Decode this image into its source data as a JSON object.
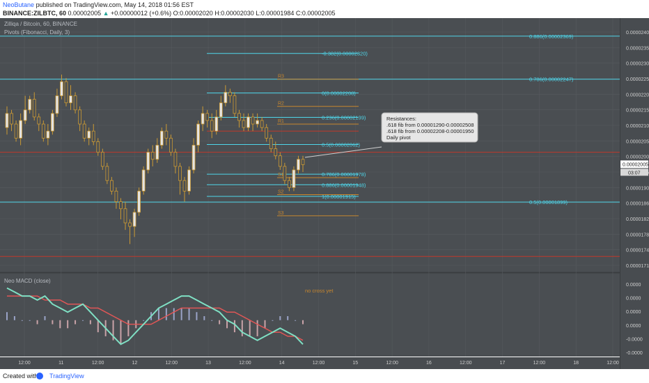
{
  "header": {
    "user": "NeoButane",
    "published": "published on TradingView.com, May 14, 2018 01:56 EST",
    "symbol": "BINANCE:ZILBTC, 60",
    "last": "0.00002005",
    "arrow": "▲",
    "change": "+0.00000012 (+0.6%)",
    "open_label": "O:",
    "open": "0.00002020",
    "high_label": "H:",
    "high": "0.00002030",
    "low_label": "L:",
    "low": "0.00001984",
    "close_label": "C:",
    "close": "0.00002005"
  },
  "legend": {
    "title": "Zilliqa / Bitcoin, 60, BINANCE",
    "pivots": "Pivots (Fibonacci, Daily, 3)",
    "macd": "Neo MACD (close)"
  },
  "footer": {
    "created": "Created with",
    "brand": "TradingView"
  },
  "colors": {
    "background": "#4a4e52",
    "grid": "#565a5e",
    "candle_up": "#e3e3e3",
    "candle_outline": "#cc9a33",
    "cyan": "#4fd6ea",
    "orange": "#c8872e",
    "red": "#c0392b",
    "macd_line": "#7fe0c4",
    "signal_line": "#e05656",
    "axis_text": "#d0d0d0"
  },
  "chart_data": {
    "type": "candlestick",
    "symbol": "ZILBTC",
    "exchange": "BINANCE",
    "interval": "60",
    "price_axis": {
      "min": 1.7e-06,
      "max": 2.42e-06,
      "ticks": [
        "0.00002400",
        "0.00002350",
        "0.00002300",
        "0.00002250",
        "0.00002200",
        "0.00002150",
        "0.00002100",
        "0.00002050",
        "0.00002000",
        "0.00001950",
        "0.00001900",
        "0.00001860",
        "0.00001820",
        "0.00001780",
        "0.00001745",
        "0.00001710"
      ]
    },
    "current_price_label": "0.00002005",
    "countdown_label": "03:07",
    "time_axis": [
      "12:00",
      "11",
      "12:00",
      "12",
      "12:00",
      "13",
      "12:00",
      "14",
      "12:00",
      "15",
      "12:00",
      "16",
      "12:00",
      "17",
      "12:00",
      "18",
      "12:00"
    ],
    "candles": [
      {
        "o": 2110,
        "c": 2150,
        "h": 2170,
        "l": 2090
      },
      {
        "o": 2150,
        "c": 2120,
        "h": 2160,
        "l": 2100
      },
      {
        "o": 2120,
        "c": 2080,
        "h": 2130,
        "l": 2070
      },
      {
        "o": 2080,
        "c": 2130,
        "h": 2150,
        "l": 2060
      },
      {
        "o": 2130,
        "c": 2160,
        "h": 2200,
        "l": 2120
      },
      {
        "o": 2160,
        "c": 2190,
        "h": 2200,
        "l": 2150
      },
      {
        "o": 2190,
        "c": 2140,
        "h": 2210,
        "l": 2130
      },
      {
        "o": 2140,
        "c": 2120,
        "h": 2150,
        "l": 2100
      },
      {
        "o": 2120,
        "c": 2080,
        "h": 2130,
        "l": 2070
      },
      {
        "o": 2080,
        "c": 2100,
        "h": 2120,
        "l": 2060
      },
      {
        "o": 2100,
        "c": 2150,
        "h": 2160,
        "l": 2090
      },
      {
        "o": 2150,
        "c": 2200,
        "h": 2220,
        "l": 2140
      },
      {
        "o": 2200,
        "c": 2240,
        "h": 2260,
        "l": 2190
      },
      {
        "o": 2240,
        "c": 2180,
        "h": 2250,
        "l": 2170
      },
      {
        "o": 2180,
        "c": 2200,
        "h": 2230,
        "l": 2160
      },
      {
        "o": 2200,
        "c": 2160,
        "h": 2210,
        "l": 2150
      },
      {
        "o": 2160,
        "c": 2120,
        "h": 2170,
        "l": 2100
      },
      {
        "o": 2120,
        "c": 2080,
        "h": 2130,
        "l": 2070
      },
      {
        "o": 2080,
        "c": 2100,
        "h": 2110,
        "l": 2060
      },
      {
        "o": 2100,
        "c": 2070,
        "h": 2120,
        "l": 2060
      },
      {
        "o": 2070,
        "c": 2040,
        "h": 2080,
        "l": 2030
      },
      {
        "o": 2040,
        "c": 2000,
        "h": 2050,
        "l": 1990
      },
      {
        "o": 2000,
        "c": 1960,
        "h": 2010,
        "l": 1950
      },
      {
        "o": 1960,
        "c": 1930,
        "h": 1970,
        "l": 1920
      },
      {
        "o": 1930,
        "c": 1900,
        "h": 1940,
        "l": 1880
      },
      {
        "o": 1900,
        "c": 1880,
        "h": 1910,
        "l": 1850
      },
      {
        "o": 1880,
        "c": 1840,
        "h": 1900,
        "l": 1820
      },
      {
        "o": 1840,
        "c": 1830,
        "h": 1850,
        "l": 1780
      },
      {
        "o": 1830,
        "c": 1870,
        "h": 1880,
        "l": 1800
      },
      {
        "o": 1870,
        "c": 1930,
        "h": 1940,
        "l": 1860
      },
      {
        "o": 1930,
        "c": 1990,
        "h": 2000,
        "l": 1920
      },
      {
        "o": 1990,
        "c": 2040,
        "h": 2050,
        "l": 1980
      },
      {
        "o": 2040,
        "c": 2020,
        "h": 2060,
        "l": 2000
      },
      {
        "o": 2020,
        "c": 2060,
        "h": 2080,
        "l": 2010
      },
      {
        "o": 2060,
        "c": 2100,
        "h": 2110,
        "l": 2050
      },
      {
        "o": 2100,
        "c": 2080,
        "h": 2120,
        "l": 2060
      },
      {
        "o": 2080,
        "c": 2040,
        "h": 2090,
        "l": 2030
      },
      {
        "o": 2040,
        "c": 2000,
        "h": 2050,
        "l": 1980
      },
      {
        "o": 2000,
        "c": 1960,
        "h": 2010,
        "l": 1920
      },
      {
        "o": 1960,
        "c": 1930,
        "h": 1970,
        "l": 1900
      },
      {
        "o": 1930,
        "c": 1990,
        "h": 2000,
        "l": 1920
      },
      {
        "o": 1990,
        "c": 2060,
        "h": 2080,
        "l": 1980
      },
      {
        "o": 2060,
        "c": 2120,
        "h": 2130,
        "l": 2040
      },
      {
        "o": 2120,
        "c": 2150,
        "h": 2170,
        "l": 2100
      },
      {
        "o": 2150,
        "c": 2130,
        "h": 2160,
        "l": 2110
      },
      {
        "o": 2130,
        "c": 2100,
        "h": 2150,
        "l": 2080
      },
      {
        "o": 2100,
        "c": 2140,
        "h": 2160,
        "l": 2090
      },
      {
        "o": 2140,
        "c": 2180,
        "h": 2200,
        "l": 2130
      },
      {
        "o": 2180,
        "c": 2210,
        "h": 2230,
        "l": 2170
      },
      {
        "o": 2210,
        "c": 2200,
        "h": 2220,
        "l": 2180
      },
      {
        "o": 2200,
        "c": 2150,
        "h": 2210,
        "l": 2140
      },
      {
        "o": 2150,
        "c": 2130,
        "h": 2160,
        "l": 2110
      },
      {
        "o": 2130,
        "c": 2110,
        "h": 2150,
        "l": 2100
      },
      {
        "o": 2110,
        "c": 2140,
        "h": 2150,
        "l": 2100
      },
      {
        "o": 2140,
        "c": 2120,
        "h": 2150,
        "l": 2100
      },
      {
        "o": 2120,
        "c": 2130,
        "h": 2150,
        "l": 2110
      },
      {
        "o": 2130,
        "c": 2110,
        "h": 2140,
        "l": 2100
      },
      {
        "o": 2110,
        "c": 2080,
        "h": 2120,
        "l": 2070
      },
      {
        "o": 2080,
        "c": 2050,
        "h": 2090,
        "l": 2040
      },
      {
        "o": 2050,
        "c": 2030,
        "h": 2070,
        "l": 2020
      },
      {
        "o": 2030,
        "c": 2000,
        "h": 2040,
        "l": 1990
      },
      {
        "o": 2000,
        "c": 1960,
        "h": 2010,
        "l": 1950
      },
      {
        "o": 1960,
        "c": 1940,
        "h": 1970,
        "l": 1930
      },
      {
        "o": 1940,
        "c": 1990,
        "h": 2000,
        "l": 1930
      },
      {
        "o": 1990,
        "c": 2020,
        "h": 2030,
        "l": 1980
      },
      {
        "o": 2020,
        "c": 2005,
        "h": 2030,
        "l": 1984
      }
    ],
    "horizontal_lines": [
      {
        "label": "0.886(0.00002369)",
        "value": 2369,
        "color": "cyan",
        "span": "full"
      },
      {
        "label": "0.786(0.00002247)",
        "value": 2247,
        "color": "cyan",
        "span": "full"
      },
      {
        "label": "0.5(0.00001899)",
        "value": 1899,
        "color": "cyan",
        "span": "full"
      },
      {
        "label": "-0.382(0.00002320)",
        "value": 2320,
        "color": "cyan",
        "span": "fib"
      },
      {
        "label": "0(0.00002208)",
        "value": 2208,
        "color": "cyan",
        "span": "fib"
      },
      {
        "label": "0.236(0.00002139)",
        "value": 2139,
        "color": "cyan",
        "span": "fib"
      },
      {
        "label": "0.5(0.00002062)",
        "value": 2062,
        "color": "cyan",
        "span": "fib"
      },
      {
        "label": "0.786(0.00001978)",
        "value": 1978,
        "color": "cyan",
        "span": "fib"
      },
      {
        "label": "0.886(0.00001948)",
        "value": 1948,
        "color": "cyan",
        "span": "fib"
      },
      {
        "label": "1(0.00001915)",
        "value": 1915,
        "color": "cyan",
        "span": "fib"
      },
      {
        "label": "",
        "value": 2040,
        "color": "red",
        "span": "full"
      },
      {
        "label": "",
        "value": 1745,
        "color": "red",
        "span": "full"
      },
      {
        "label": "",
        "value": 2100,
        "color": "red",
        "span": "fib"
      }
    ],
    "pivot_levels": [
      {
        "label": "R3",
        "value": 2247
      },
      {
        "label": "R2",
        "value": 2170
      },
      {
        "label": "R1",
        "value": 2120
      },
      {
        "label": "S1",
        "value": 1968
      },
      {
        "label": "S2",
        "value": 1920
      },
      {
        "label": "S3",
        "value": 1860
      }
    ],
    "annotation": {
      "lines": [
        "Resistances:",
        ".618 fib from 0.00001290-0.00002508",
        ".618 fib from 0.00002208-0.00001950",
        "Daily pivot"
      ]
    },
    "macd": {
      "title": "Neo MACD (close)",
      "note": "no cross yet",
      "ticks": [
        "0.0000",
        "0.0000",
        "0.0000",
        "0.0000",
        "-0.0000",
        "-0.0000"
      ],
      "macd_line": [
        8,
        7,
        6,
        6,
        5,
        6,
        4,
        3,
        2,
        3,
        4,
        2,
        0,
        -2,
        -4,
        -6,
        -5,
        -3,
        -1,
        1,
        3,
        4,
        5,
        6,
        6,
        5,
        4,
        3,
        2,
        0,
        -1,
        -3,
        -4,
        -5,
        -4,
        -3,
        -2,
        -3,
        -4,
        -6
      ],
      "signal_line": [
        6,
        6,
        6,
        6,
        6,
        5,
        5,
        5,
        4,
        4,
        4,
        3,
        3,
        2,
        1,
        0,
        -1,
        -1,
        -1,
        -1,
        0,
        1,
        2,
        3,
        3,
        3,
        3,
        3,
        3,
        2,
        2,
        1,
        0,
        -1,
        -2,
        -3,
        -3,
        -4,
        -4,
        -5
      ],
      "histogram": [
        2,
        1,
        0,
        0,
        -1,
        1,
        -1,
        -2,
        -2,
        -1,
        0,
        -1,
        -3,
        -4,
        -5,
        -6,
        -4,
        -2,
        0,
        2,
        3,
        3,
        3,
        3,
        3,
        2,
        1,
        0,
        -1,
        -2,
        -3,
        -4,
        -4,
        -4,
        -2,
        0,
        1,
        1,
        0,
        -1
      ]
    }
  }
}
